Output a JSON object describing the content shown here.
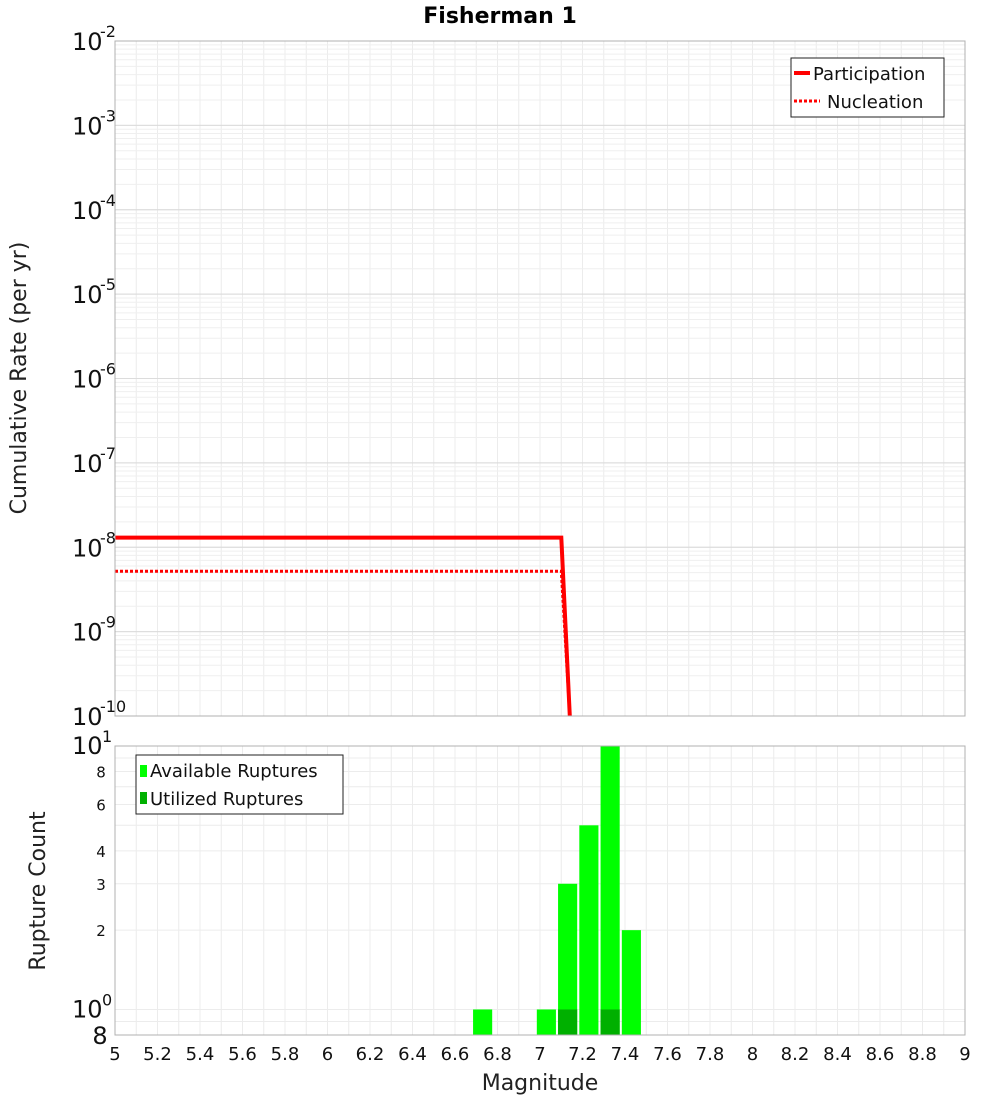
{
  "chart_data": [
    {
      "type": "line",
      "title": "Fisherman 1",
      "xlabel": "",
      "ylabel": "Cumulative Rate (per yr)",
      "yscale": "log",
      "xlim": [
        5,
        9
      ],
      "ylim": [
        1e-10,
        0.01
      ],
      "y_ticks": [
        {
          "base": "10",
          "exp": "-2"
        },
        {
          "base": "10",
          "exp": "-3"
        },
        {
          "base": "10",
          "exp": "-4"
        },
        {
          "base": "10",
          "exp": "-5"
        },
        {
          "base": "10",
          "exp": "-6"
        },
        {
          "base": "10",
          "exp": "-7"
        },
        {
          "base": "10",
          "exp": "-8"
        },
        {
          "base": "10",
          "exp": "-9"
        },
        {
          "base": "10",
          "exp": "-10"
        }
      ],
      "grid": true,
      "legend_position": "top-right",
      "series": [
        {
          "name": "Participation",
          "color": "#ff0000",
          "style": "solid",
          "points": [
            [
              5.0,
              1.3e-08
            ],
            [
              7.1,
              1.3e-08
            ],
            [
              7.14,
              1e-10
            ]
          ]
        },
        {
          "name": "Nucleation",
          "color": "#ff0000",
          "style": "dotted",
          "points": [
            [
              5.0,
              5.2e-09
            ],
            [
              7.1,
              5.2e-09
            ],
            [
              7.14,
              1e-10
            ]
          ]
        }
      ]
    },
    {
      "type": "bar",
      "xlabel": "Magnitude",
      "ylabel": "Rupture Count",
      "yscale": "log",
      "xlim": [
        5,
        9
      ],
      "ylim": [
        0.8,
        10
      ],
      "x_ticks": [
        "5",
        "5.2",
        "5.4",
        "5.6",
        "5.8",
        "6",
        "6.2",
        "6.4",
        "6.6",
        "6.8",
        "7",
        "7.2",
        "7.4",
        "7.6",
        "7.8",
        "8",
        "8.2",
        "8.4",
        "8.6",
        "8.8",
        "9"
      ],
      "y_ticks_major": [
        {
          "base": "10",
          "exp": "0",
          "value": 1
        },
        {
          "base": "10",
          "exp": "1",
          "value": 10
        }
      ],
      "y_ticks_minor": [
        {
          "label": "2",
          "value": 2
        },
        {
          "label": "3",
          "value": 3
        },
        {
          "label": "4",
          "value": 4
        },
        {
          "label": "6",
          "value": 6
        },
        {
          "label": "8",
          "value": 8
        }
      ],
      "y_min_label": "8",
      "bar_width": 0.09,
      "legend_position": "top-left",
      "series": [
        {
          "name": "Available Ruptures",
          "color": "#00ff00",
          "x": [
            6.73,
            7.03,
            7.13,
            7.23,
            7.33,
            7.43
          ],
          "values": [
            1,
            1,
            3,
            5,
            10,
            2
          ]
        },
        {
          "name": "Utilized Ruptures",
          "color": "#00b000",
          "x": [
            7.13,
            7.33
          ],
          "values": [
            1,
            1
          ]
        }
      ]
    }
  ]
}
